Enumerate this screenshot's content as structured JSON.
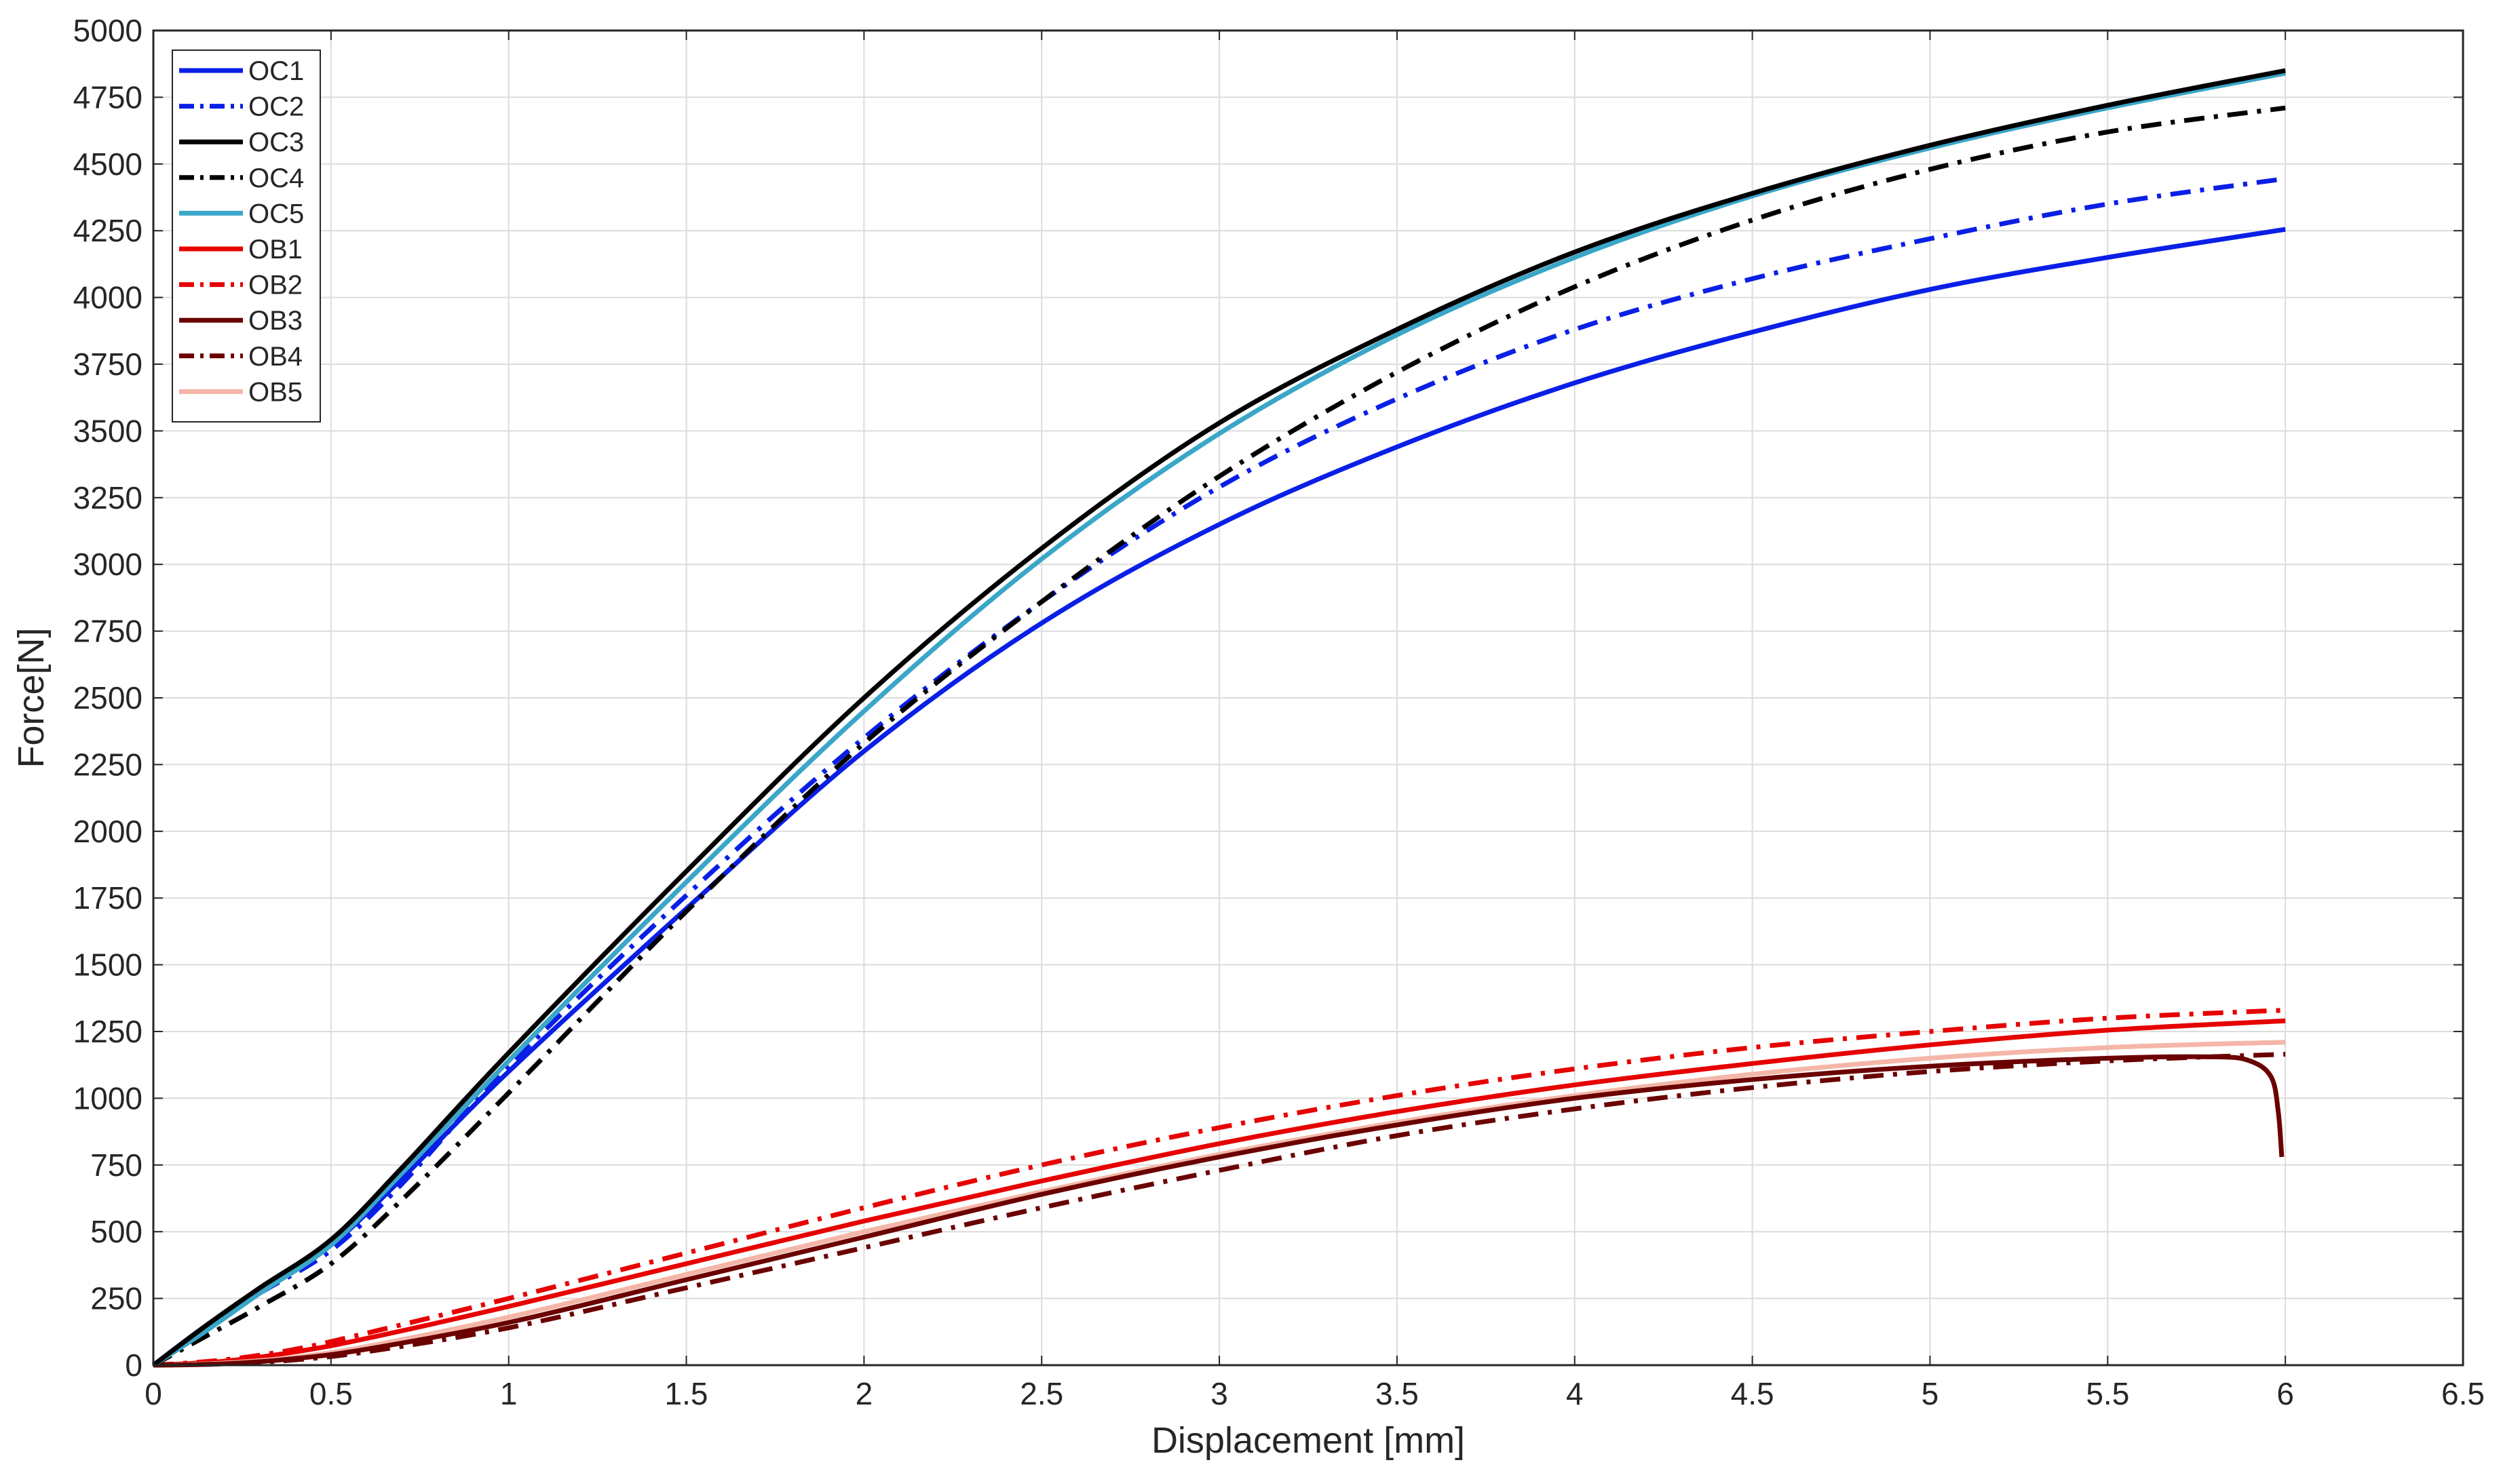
{
  "chart_data": {
    "type": "line",
    "title": "",
    "xlabel": "Displacement [mm]",
    "ylabel": "Force[N]",
    "xlim": [
      0,
      6.5
    ],
    "ylim": [
      0,
      5000
    ],
    "x_ticks": [
      0,
      0.5,
      1,
      1.5,
      2,
      2.5,
      3,
      3.5,
      4,
      4.5,
      5,
      5.5,
      6,
      6.5
    ],
    "x_tick_labels": [
      "0",
      "0.5",
      "1",
      "1.5",
      "2",
      "2.5",
      "3",
      "3.5",
      "4",
      "4.5",
      "5",
      "5.5",
      "6",
      "6.5"
    ],
    "y_ticks": [
      0,
      250,
      500,
      750,
      1000,
      1250,
      1500,
      1750,
      2000,
      2250,
      2500,
      2750,
      3000,
      3250,
      3500,
      3750,
      4000,
      4250,
      4500,
      4750,
      5000
    ],
    "y_tick_labels": [
      "0",
      "250",
      "500",
      "750",
      "1000",
      "1250",
      "1500",
      "1750",
      "2000",
      "2250",
      "2500",
      "2750",
      "3000",
      "3250",
      "3500",
      "3750",
      "4000",
      "4250",
      "4500",
      "4750",
      "5000"
    ],
    "grid": true,
    "legend_position": "top-left",
    "series": [
      {
        "name": "OC1",
        "color": "#0a1fe6",
        "dash": "solid",
        "points": [
          [
            0,
            0
          ],
          [
            0.15,
            150
          ],
          [
            0.3,
            280
          ],
          [
            0.5,
            450
          ],
          [
            0.7,
            700
          ],
          [
            1,
            1100
          ],
          [
            1.5,
            1710
          ],
          [
            2,
            2300
          ],
          [
            2.5,
            2780
          ],
          [
            3,
            3150
          ],
          [
            3.5,
            3440
          ],
          [
            4,
            3680
          ],
          [
            4.5,
            3870
          ],
          [
            5,
            4030
          ],
          [
            5.5,
            4150
          ],
          [
            6,
            4255
          ]
        ]
      },
      {
        "name": "OC2",
        "color": "#0a1fe6",
        "dash": "dashdot",
        "points": [
          [
            0,
            0
          ],
          [
            0.15,
            140
          ],
          [
            0.3,
            270
          ],
          [
            0.5,
            430
          ],
          [
            0.7,
            680
          ],
          [
            1,
            1120
          ],
          [
            1.5,
            1760
          ],
          [
            2,
            2350
          ],
          [
            2.5,
            2860
          ],
          [
            3,
            3290
          ],
          [
            3.5,
            3620
          ],
          [
            4,
            3880
          ],
          [
            4.5,
            4070
          ],
          [
            5,
            4220
          ],
          [
            5.5,
            4350
          ],
          [
            6,
            4445
          ]
        ]
      },
      {
        "name": "OC3",
        "color": "#000000",
        "dash": "solid",
        "points": [
          [
            0,
            0
          ],
          [
            0.15,
            150
          ],
          [
            0.3,
            290
          ],
          [
            0.5,
            470
          ],
          [
            0.7,
            740
          ],
          [
            1,
            1170
          ],
          [
            1.5,
            1850
          ],
          [
            2,
            2500
          ],
          [
            2.5,
            3060
          ],
          [
            3,
            3530
          ],
          [
            3.5,
            3880
          ],
          [
            4,
            4170
          ],
          [
            4.5,
            4390
          ],
          [
            5,
            4570
          ],
          [
            5.5,
            4720
          ],
          [
            6,
            4850
          ]
        ]
      },
      {
        "name": "OC4",
        "color": "#000000",
        "dash": "dashdot",
        "points": [
          [
            0,
            0
          ],
          [
            0.15,
            110
          ],
          [
            0.3,
            220
          ],
          [
            0.5,
            380
          ],
          [
            0.7,
            620
          ],
          [
            1,
            1020
          ],
          [
            1.5,
            1700
          ],
          [
            2,
            2330
          ],
          [
            2.5,
            2860
          ],
          [
            3,
            3330
          ],
          [
            3.5,
            3720
          ],
          [
            4,
            4040
          ],
          [
            4.5,
            4290
          ],
          [
            5,
            4480
          ],
          [
            5.5,
            4620
          ],
          [
            6,
            4710
          ]
        ]
      },
      {
        "name": "OC5",
        "color": "#3aa6c8",
        "dash": "solid",
        "points": [
          [
            0,
            0
          ],
          [
            0.15,
            130
          ],
          [
            0.3,
            270
          ],
          [
            0.5,
            450
          ],
          [
            0.7,
            720
          ],
          [
            1,
            1140
          ],
          [
            1.5,
            1810
          ],
          [
            2,
            2450
          ],
          [
            2.5,
            3020
          ],
          [
            3,
            3490
          ],
          [
            3.5,
            3860
          ],
          [
            4,
            4150
          ],
          [
            4.5,
            4380
          ],
          [
            5,
            4560
          ],
          [
            5.5,
            4710
          ],
          [
            6,
            4840
          ]
        ]
      },
      {
        "name": "OB1",
        "color": "#e60000",
        "dash": "solid",
        "points": [
          [
            0,
            0
          ],
          [
            0.2,
            15
          ],
          [
            0.4,
            50
          ],
          [
            0.6,
            100
          ],
          [
            1,
            220
          ],
          [
            1.5,
            380
          ],
          [
            2,
            540
          ],
          [
            2.5,
            690
          ],
          [
            3,
            830
          ],
          [
            3.5,
            950
          ],
          [
            4,
            1050
          ],
          [
            4.5,
            1130
          ],
          [
            5,
            1200
          ],
          [
            5.5,
            1255
          ],
          [
            6,
            1290
          ]
        ]
      },
      {
        "name": "OB2",
        "color": "#e60000",
        "dash": "dashdot",
        "points": [
          [
            0,
            0
          ],
          [
            0.2,
            20
          ],
          [
            0.4,
            60
          ],
          [
            0.6,
            120
          ],
          [
            1,
            250
          ],
          [
            1.5,
            420
          ],
          [
            2,
            590
          ],
          [
            2.5,
            750
          ],
          [
            3,
            890
          ],
          [
            3.5,
            1010
          ],
          [
            4,
            1110
          ],
          [
            4.5,
            1190
          ],
          [
            5,
            1250
          ],
          [
            5.5,
            1300
          ],
          [
            6,
            1330
          ]
        ]
      },
      {
        "name": "OB3",
        "color": "#6b0000",
        "dash": "solid",
        "points": [
          [
            0,
            0
          ],
          [
            0.2,
            5
          ],
          [
            0.4,
            25
          ],
          [
            0.6,
            60
          ],
          [
            1,
            160
          ],
          [
            1.5,
            320
          ],
          [
            2,
            480
          ],
          [
            2.5,
            640
          ],
          [
            3,
            780
          ],
          [
            3.5,
            900
          ],
          [
            4,
            1000
          ],
          [
            4.5,
            1070
          ],
          [
            5,
            1120
          ],
          [
            5.5,
            1150
          ],
          [
            5.8,
            1155
          ],
          [
            5.9,
            1140
          ],
          [
            5.96,
            1080
          ],
          [
            5.98,
            950
          ],
          [
            5.99,
            780
          ]
        ]
      },
      {
        "name": "OB4",
        "color": "#6b0000",
        "dash": "dashdot",
        "points": [
          [
            0,
            0
          ],
          [
            0.2,
            5
          ],
          [
            0.4,
            20
          ],
          [
            0.6,
            50
          ],
          [
            1,
            140
          ],
          [
            1.5,
            290
          ],
          [
            2,
            440
          ],
          [
            2.5,
            590
          ],
          [
            3,
            730
          ],
          [
            3.5,
            860
          ],
          [
            4,
            960
          ],
          [
            4.5,
            1040
          ],
          [
            5,
            1100
          ],
          [
            5.5,
            1140
          ],
          [
            6,
            1165
          ]
        ]
      },
      {
        "name": "OB5",
        "color": "#f4b6a8",
        "dash": "solid",
        "points": [
          [
            0,
            0
          ],
          [
            0.2,
            8
          ],
          [
            0.4,
            30
          ],
          [
            0.6,
            70
          ],
          [
            1,
            180
          ],
          [
            1.5,
            340
          ],
          [
            2,
            500
          ],
          [
            2.5,
            650
          ],
          [
            3,
            790
          ],
          [
            3.5,
            910
          ],
          [
            4,
            1010
          ],
          [
            4.5,
            1090
          ],
          [
            5,
            1150
          ],
          [
            5.5,
            1190
          ],
          [
            6,
            1210
          ]
        ]
      }
    ]
  }
}
